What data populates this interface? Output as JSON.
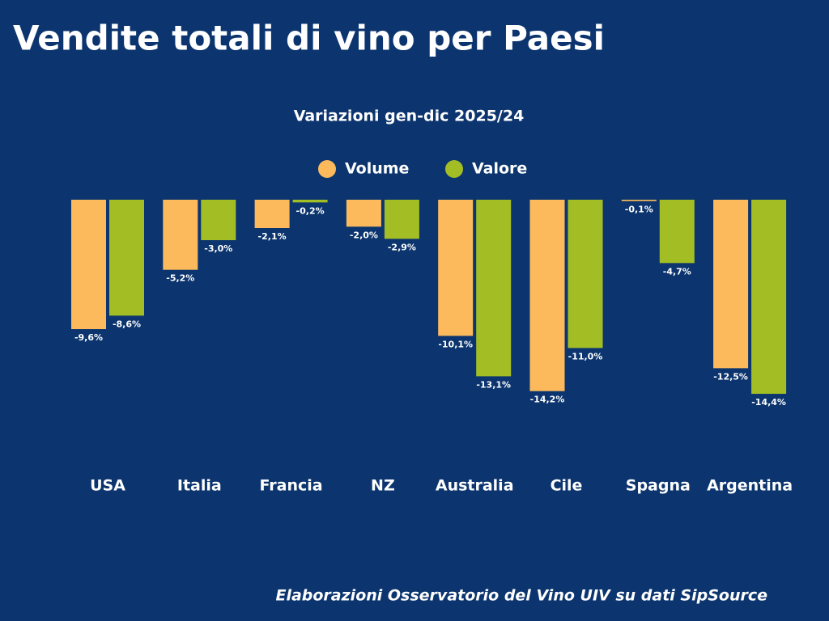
{
  "chart_data": {
    "type": "bar",
    "title": "Vendite totali di vino per Paesi",
    "subtitle": "Variazioni gen-dic 2025/24",
    "source": "Elaborazioni Osservatorio del Vino UIV su dati SipSource",
    "categories": [
      "USA",
      "Italia",
      "Francia",
      "NZ",
      "Australia",
      "Cile",
      "Spagna",
      "Argentina"
    ],
    "series": [
      {
        "name": "Volume",
        "color": "#fdba5c",
        "values": [
          -9.6,
          -5.2,
          -2.1,
          -2.0,
          -10.1,
          -14.2,
          -0.1,
          -12.5
        ],
        "value_labels": [
          "-9,6%",
          "-5,2%",
          "-2,1%",
          "-2,0%",
          "-10,1%",
          "-14,2%",
          "-0,1%",
          "-12,5%"
        ]
      },
      {
        "name": "Valore",
        "color": "#a3be25",
        "values": [
          -8.6,
          -3.0,
          -0.2,
          -2.9,
          -13.1,
          -11.0,
          -4.7,
          -14.4
        ],
        "value_labels": [
          "-8,6%",
          "-3,0%",
          "-0,2%",
          "-2,9%",
          "-13,1%",
          "-11,0%",
          "-4,7%",
          "-14,4%"
        ]
      }
    ]
  }
}
